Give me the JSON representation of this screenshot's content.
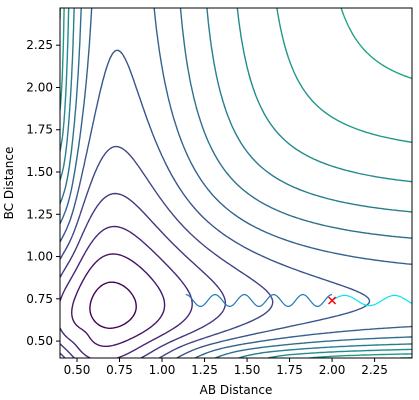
{
  "chart_data": {
    "type": "contour",
    "xlabel": "AB Distance",
    "ylabel": "BC Distance",
    "xlim": [
      0.4,
      2.47
    ],
    "ylim": [
      0.4,
      2.47
    ],
    "xticks": [
      "0.50",
      "0.75",
      "1.00",
      "1.25",
      "1.50",
      "1.75",
      "2.00",
      "2.25"
    ],
    "yticks": [
      "0.50",
      "0.75",
      "1.00",
      "1.25",
      "1.50",
      "1.75",
      "2.00",
      "2.25"
    ],
    "colormap": "viridis",
    "grid": false,
    "contour_levels": 20,
    "trajectory": {
      "color": "#1f77b4",
      "start": [
        2.0,
        0.74
      ],
      "x_range": [
        1.14,
        2.0
      ],
      "y_center": 0.74,
      "y_amplitude": 0.035,
      "cycles": 5
    },
    "reference_path": {
      "color": "#00e5ee",
      "x_range": [
        2.0,
        2.47
      ],
      "y_center": 0.74,
      "y_amplitude": 0.03
    },
    "marker": {
      "symbol": "x",
      "color": "#ff0000",
      "x": 2.0,
      "y": 0.74
    }
  }
}
